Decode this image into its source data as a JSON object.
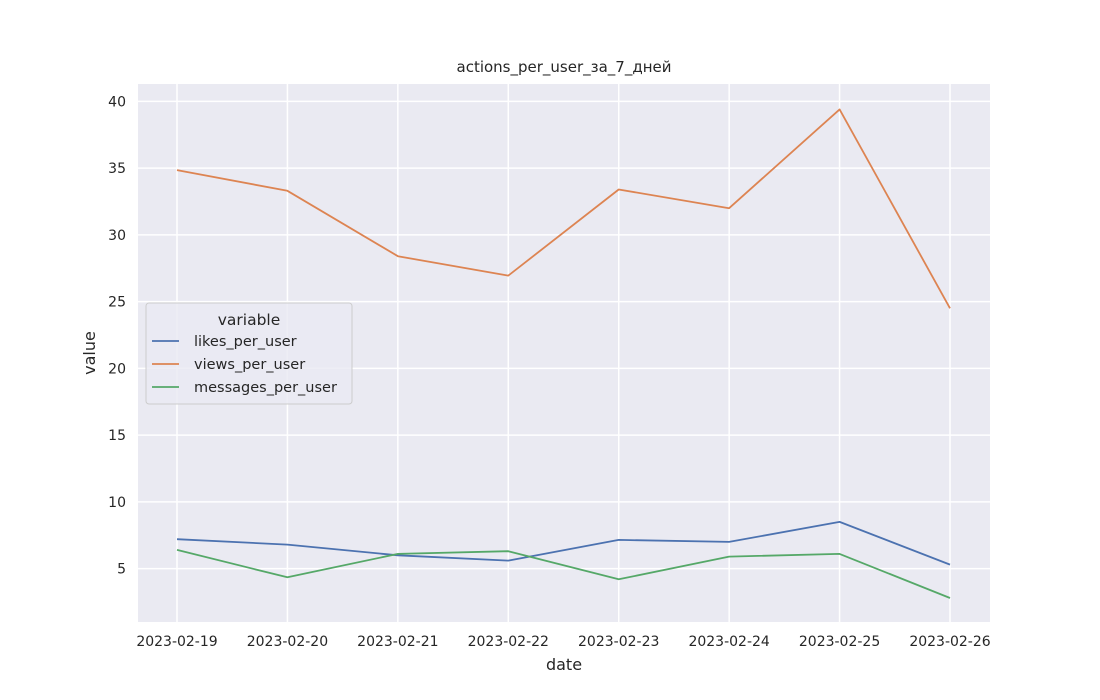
{
  "chart_data": {
    "type": "line",
    "title": "actions_per_user_за_7_дней",
    "xlabel": "date",
    "ylabel": "value",
    "x": [
      "2023-02-19",
      "2023-02-20",
      "2023-02-21",
      "2023-02-22",
      "2023-02-23",
      "2023-02-24",
      "2023-02-25",
      "2023-02-26"
    ],
    "yticks": [
      5,
      10,
      15,
      20,
      25,
      30,
      35,
      40
    ],
    "ylim": [
      1,
      41.3
    ],
    "grid": true,
    "legend": {
      "title": "variable",
      "placement": "center-left"
    },
    "series": [
      {
        "name": "likes_per_user",
        "color": "#4c72b0",
        "values": [
          7.2,
          6.8,
          6.0,
          5.6,
          7.15,
          7.0,
          8.5,
          5.3
        ]
      },
      {
        "name": "views_per_user",
        "color": "#dd8452",
        "values": [
          34.85,
          33.3,
          28.4,
          26.95,
          33.4,
          32.0,
          39.4,
          24.5
        ]
      },
      {
        "name": "messages_per_user",
        "color": "#55a868",
        "values": [
          6.4,
          4.35,
          6.1,
          6.3,
          4.2,
          5.9,
          6.1,
          2.8
        ]
      }
    ]
  }
}
